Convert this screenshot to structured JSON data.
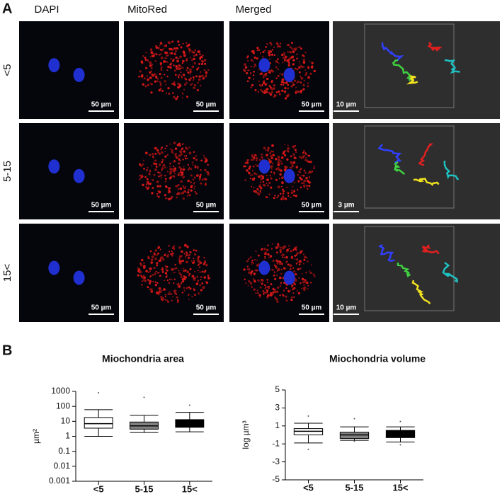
{
  "panel_a": {
    "label": "A",
    "columns": [
      "DAPI",
      "MitoRed",
      "Merged"
    ],
    "rows": [
      {
        "label": "<5",
        "scale_labels": [
          "50 µm",
          "50 µm",
          "50 µm",
          "10 µm"
        ]
      },
      {
        "label": "5-15",
        "scale_labels": [
          "50 µm",
          "50 µm",
          "50 µm",
          "3 µm"
        ]
      },
      {
        "label": "15<",
        "scale_labels": [
          "50 µm",
          "50 µm",
          "50 µm",
          "10 µm"
        ]
      }
    ]
  },
  "panel_b": {
    "label": "B"
  },
  "chart_data": [
    {
      "type": "box",
      "title": "Miochondria area",
      "ylabel": "µm²",
      "log_scale": true,
      "categories": [
        "<5",
        "5-15",
        "15<"
      ],
      "box_colors": [
        "#ffffff",
        "#808080",
        "#000000"
      ],
      "whisker_low": [
        1,
        1.8,
        2
      ],
      "q1": [
        3.5,
        3,
        4
      ],
      "median": [
        7,
        5,
        7
      ],
      "q3": [
        18,
        9,
        13
      ],
      "whisker_high": [
        60,
        25,
        40
      ],
      "outliers": [
        [
          800
        ],
        [
          400
        ],
        [
          120
        ]
      ],
      "ylim": [
        0.001,
        1000
      ],
      "yticks": [
        0.001,
        0.01,
        0.1,
        1,
        10,
        100,
        1000
      ]
    },
    {
      "type": "box",
      "title": "Miochondria volume",
      "ylabel": "log µm³",
      "log_scale": false,
      "categories": [
        "<5",
        "5-15",
        "15<"
      ],
      "box_colors": [
        "#ffffff",
        "#808080",
        "#000000"
      ],
      "whisker_low": [
        -0.9,
        -0.6,
        -0.8
      ],
      "q1": [
        0,
        -0.4,
        -0.3
      ],
      "median": [
        0.4,
        0,
        0.2
      ],
      "q3": [
        0.7,
        0.3,
        0.5
      ],
      "whisker_high": [
        1.3,
        0.9,
        0.9
      ],
      "outliers": [
        [
          2.1,
          -1.6
        ],
        [
          1.8,
          -0.7
        ],
        [
          1.5,
          -1.1
        ]
      ],
      "ylim": [
        -5,
        5
      ],
      "yticks": [
        -5,
        -3,
        -1,
        1,
        3,
        5
      ]
    }
  ]
}
